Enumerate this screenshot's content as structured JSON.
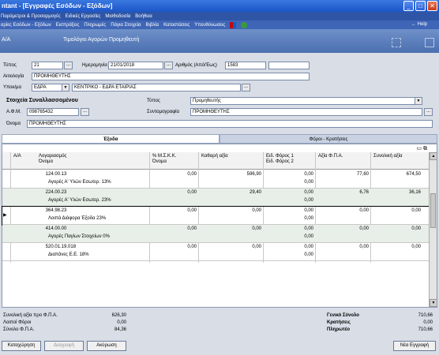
{
  "window": {
    "title": "ntant - [Εγγραφές Εσόδων - Εξόδων]"
  },
  "menu1": [
    "Παράμετροι & Προσαρμογές",
    "Ειδικές Εργασίες",
    "Μισθοδοσία",
    "Βοήθεια"
  ],
  "menu2": {
    "items": [
      "αρίες Εσόδων - Εξόδων",
      "Εισπράξεις",
      "Πληρωμές",
      "Πάγια Στοιχεία",
      "Βιβλία",
      "Καταστάσεις",
      "Υπευθύνωσεις"
    ],
    "help": "Help"
  },
  "header": {
    "aa": "Α/Α",
    "title": "Τιμολόγιο Αγορών Προμηθευτή"
  },
  "form": {
    "type_label": "Τύπος",
    "type_value": "21",
    "date_label": "Ημερομηνία",
    "date_value": "21/01/2018",
    "number_label": "Αριθμός (Από/Έως)",
    "number_from": "1583",
    "number_to": "",
    "reason_label": "Αιτιολογία",
    "reason_value": "ΠΡΟΜΗΘΕΥΤΗΣ",
    "branch_label": "Υποκ/μα",
    "branch_code": "ΕΔΡΑ",
    "branch_name": "ΚΕΝΤΡΙΚΟ - ΕΔΡΑ ΕΤΑΙΡΙΑΣ",
    "party_heading": "Στοιχεία Συναλλασσομένου",
    "afm_label": "Α.Φ.Μ.",
    "afm_value": "098765432",
    "name_label": "Όνομα",
    "name_value": "ΠΡΟΜΗΘΕΥΤΗΣ",
    "party_type_label": "Τύπος",
    "party_type_value": "Προμηθευτής",
    "partner_label": "Συντομογραφία",
    "partner_value": "ΠΡΟΜΗΘΕΥΤΗΣ"
  },
  "tabs": [
    "Έξοδα",
    "Φόροι - Κρατήσεις"
  ],
  "grid": {
    "headers": [
      {
        "l1": "Α/Α",
        "l2": ""
      },
      {
        "l1": "Λογαριασμός",
        "l2": "Όνομα"
      },
      {
        "l1": "% Μ.Σ.Κ.Κ.",
        "l2": "Όνομα"
      },
      {
        "l1": "Καθαρή αξία",
        "l2": ""
      },
      {
        "l1": "Ειδ. Φόρος 1",
        "l2": "Ειδ. Φόρος 2"
      },
      {
        "l1": "Αξία Φ.Π.Α.",
        "l2": ""
      },
      {
        "l1": "Συνολική αξία",
        "l2": ""
      }
    ],
    "rows": [
      {
        "aa": "1",
        "account": "24.00.13",
        "name": "Αγορές Α' Υλών Εσωτερ. 13%",
        "msk": "0,00",
        "net": "596,90",
        "tax1": "0,00",
        "tax2": "0,00",
        "vat": "77,60",
        "total": "674,50"
      },
      {
        "aa": "2",
        "account": "24.00.23",
        "name": "Αγορές Α' Υλών Εσωτερ. 23%",
        "msk": "0,00",
        "net": "29,40",
        "tax1": "0,00",
        "tax2": "0,00",
        "vat": "6,76",
        "total": "36,16"
      },
      {
        "aa": "3",
        "account": "64.98.23",
        "name": "Λοιπά Διάφορα Έξοδα 23%",
        "msk": "0,00",
        "net": "0,00",
        "tax1": "0,00",
        "tax2": "0,00",
        "vat": "0,00",
        "total": "0,00"
      },
      {
        "aa": "4",
        "account": "14.00.00",
        "name": "Αγορές Παγίων Στοιχείων 0%",
        "msk": "0,00",
        "net": "0,00",
        "tax1": "0,00",
        "tax2": "0,00",
        "vat": "0,00",
        "total": "0,00"
      },
      {
        "aa": "5",
        "account": "20.01.19.018",
        "name": "Διαπάνες Ε.Ε. 18%",
        "msk": "0,00",
        "net": "0,00",
        "tax1": "0,00",
        "tax2": "0,00",
        "vat": "0,00",
        "total": "0,00"
      }
    ]
  },
  "totals": {
    "net_label": "Συνολική αξία προ Φ.Π.Α.",
    "net_value": "626,30",
    "other_label": "Λοιποί Φόροι",
    "other_value": "0,00",
    "vat_label": "Σύνολο Φ.Π.Α.",
    "vat_value": "84,36",
    "grand_label": "Γενικό Σύνολο",
    "grand_value": "710,66",
    "withheld_label": "Κρατήσεις",
    "withheld_value": "0,00",
    "payable_label": "Πληρωτέο",
    "payable_value": "710,66"
  },
  "buttons": {
    "save": "Καταχώρηση",
    "delete": "Διαγραφή",
    "cancel": "Ακύρωση",
    "new": "Νέα Εγγραφή"
  }
}
